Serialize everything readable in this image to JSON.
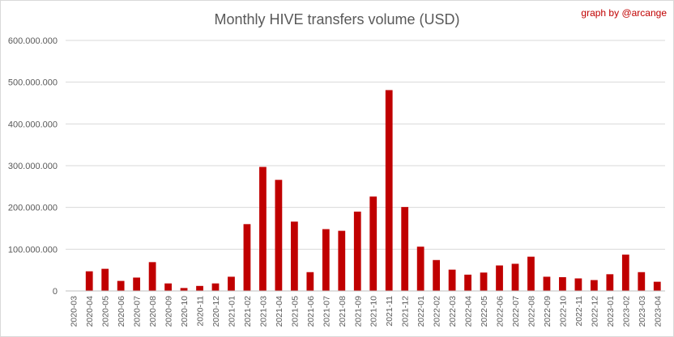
{
  "chart_data": {
    "type": "bar",
    "title": "Monthly HIVE transfers volume (USD)",
    "credit": "graph by @arcange",
    "xlabel": "",
    "ylabel": "",
    "ylim": [
      0,
      600000000
    ],
    "yticks": [
      0,
      100000000,
      200000000,
      300000000,
      400000000,
      500000000,
      600000000
    ],
    "ytick_labels": [
      "0",
      "100.000.000",
      "200.000.000",
      "300.000.000",
      "400.000.000",
      "500.000.000",
      "600.000.000"
    ],
    "grid": true,
    "legend": "none",
    "bar_color": "#c00000",
    "categories": [
      "2020-03",
      "2020-04",
      "2020-05",
      "2020-06",
      "2020-07",
      "2020-08",
      "2020-09",
      "2020-10",
      "2020-11",
      "2020-12",
      "2021-01",
      "2021-02",
      "2021-03",
      "2021-04",
      "2021-05",
      "2021-06",
      "2021-07",
      "2021-08",
      "2021-09",
      "2021-10",
      "2021-11",
      "2021-12",
      "2022-01",
      "2022-02",
      "2022-03",
      "2022-04",
      "2022-05",
      "2022-06",
      "2022-07",
      "2022-08",
      "2022-09",
      "2022-10",
      "2022-11",
      "2022-12",
      "2023-01",
      "2023-02",
      "2023-03",
      "2023-04"
    ],
    "values": [
      0,
      47000000,
      53000000,
      24000000,
      32000000,
      69000000,
      18000000,
      7000000,
      12000000,
      18000000,
      34000000,
      160000000,
      297000000,
      266000000,
      166000000,
      45000000,
      148000000,
      144000000,
      190000000,
      226000000,
      481000000,
      201000000,
      106000000,
      74000000,
      51000000,
      39000000,
      44000000,
      61000000,
      65000000,
      82000000,
      34000000,
      33000000,
      30000000,
      26000000,
      40000000,
      87000000,
      45000000,
      22000000
    ]
  }
}
